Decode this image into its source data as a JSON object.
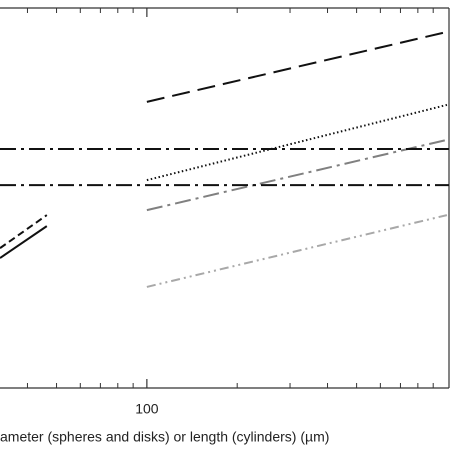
{
  "chart_data": {
    "type": "line",
    "x_label": "ameter (spheres and disks) or length (cylinders) (µm)",
    "xscale": "log",
    "xlim": [
      32.4,
      1016
    ],
    "xticks": [
      100
    ],
    "xminor_ticks": [
      40,
      50,
      60,
      70,
      80,
      90,
      200,
      300,
      400,
      500,
      600,
      700,
      800,
      900
    ],
    "ylim": [
      0,
      100
    ],
    "series": [
      {
        "color": "#111111",
        "dash": "18 8",
        "x": [
          100,
          1000
        ],
        "values": [
          75.3,
          93.7
        ]
      },
      {
        "color": "#111111",
        "dash": "1.5 2.5",
        "x": [
          100,
          1000
        ],
        "values": [
          54.7,
          74.5
        ]
      },
      {
        "color": "#808080",
        "dash": "16 5 3 5",
        "x": [
          100,
          1000
        ],
        "values": [
          46.8,
          65.3
        ]
      },
      {
        "color": "#a8a8a8",
        "dash": "9 4 2 4 2 4",
        "x": [
          100,
          1000
        ],
        "values": [
          26.6,
          45.5
        ]
      },
      {
        "color": "#111111",
        "dash": "16 5 3 5",
        "x": [
          32.4,
          1016
        ],
        "values": [
          62.9,
          62.9
        ]
      },
      {
        "color": "#111111",
        "dash": "16 5 3 5",
        "x": [
          32.4,
          1016
        ],
        "values": [
          53.4,
          53.4
        ]
      },
      {
        "color": "#111111",
        "dash": "7 4",
        "x": [
          32.4,
          46.4
        ],
        "values": [
          36.8,
          45.5
        ]
      },
      {
        "color": "#111111",
        "dash": "none",
        "x": [
          32.4,
          46.4
        ],
        "values": [
          34.2,
          42.6
        ]
      }
    ]
  }
}
